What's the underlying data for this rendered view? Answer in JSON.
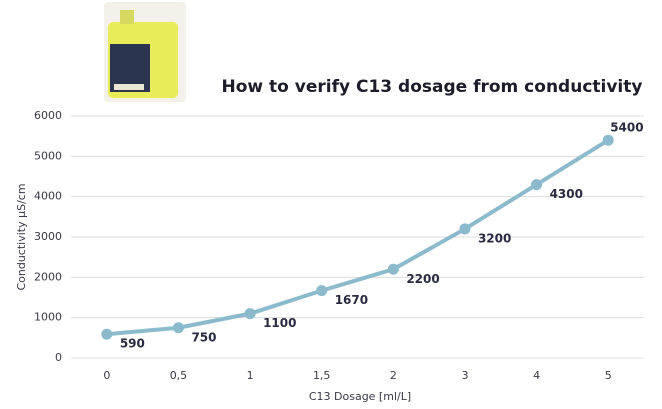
{
  "chart_data": {
    "type": "line",
    "title": "How to verify C13 dosage from conductivity",
    "x_label": "C13 Dosage [ml/L]",
    "y_label": "Conductivity µS/cm",
    "categories": [
      "0",
      "0,5",
      "1",
      "1,5",
      "2",
      "3",
      "4",
      "5"
    ],
    "values": [
      590,
      750,
      1100,
      1670,
      2200,
      3200,
      4300,
      5400
    ],
    "color": "#8bbacd",
    "ylim": [
      0,
      6000
    ],
    "yticks": [
      0,
      1000,
      2000,
      3000,
      4000,
      5000,
      6000
    ],
    "grid": true
  }
}
